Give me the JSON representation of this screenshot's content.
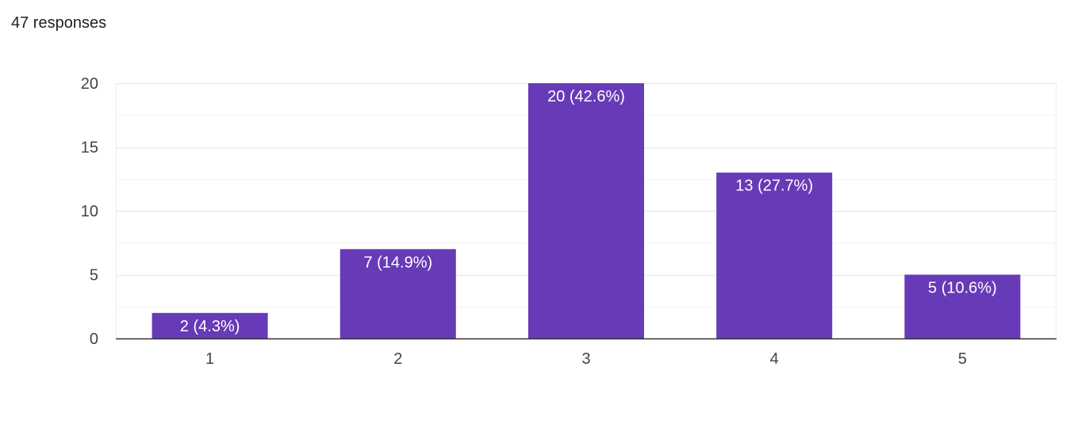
{
  "header": {
    "responses_text": "47 responses"
  },
  "chart_data": {
    "type": "bar",
    "categories": [
      "1",
      "2",
      "3",
      "4",
      "5"
    ],
    "values": [
      2,
      7,
      20,
      13,
      5
    ],
    "data_labels": [
      "2 (4.3%)",
      "7 (14.9%)",
      "20 (42.6%)",
      "13 (27.7%)",
      "5 (10.6%)"
    ],
    "y_ticks": [
      0,
      5,
      10,
      15,
      20
    ],
    "ylim": [
      0,
      20
    ],
    "minor_gridlines": true,
    "bar_color": "#673ab7",
    "grid_color": "#ebebeb",
    "minor_grid_color": "#f3f3f3",
    "axis_color": "#333333",
    "legend": "none"
  }
}
